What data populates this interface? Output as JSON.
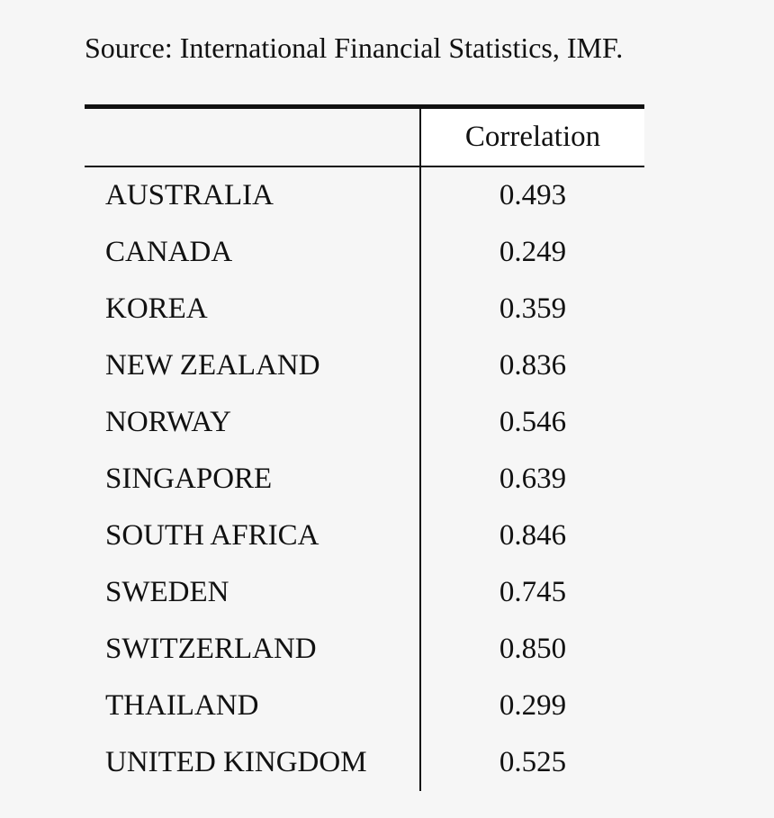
{
  "source_note": "Source: International Financial Statistics, IMF.",
  "table": {
    "header": {
      "row_label": "",
      "value_label": "Correlation"
    },
    "rows": [
      {
        "country": "AUSTRALIA",
        "correlation": "0.493"
      },
      {
        "country": "CANADA",
        "correlation": "0.249"
      },
      {
        "country": "KOREA",
        "correlation": "0.359"
      },
      {
        "country": "NEW ZEALAND",
        "correlation": "0.836"
      },
      {
        "country": "NORWAY",
        "correlation": "0.546"
      },
      {
        "country": "SINGAPORE",
        "correlation": "0.639"
      },
      {
        "country": "SOUTH AFRICA",
        "correlation": "0.846"
      },
      {
        "country": "SWEDEN",
        "correlation": "0.745"
      },
      {
        "country": "SWITZERLAND",
        "correlation": "0.850"
      },
      {
        "country": "THAILAND",
        "correlation": "0.299"
      },
      {
        "country": "UNITED KINGDOM",
        "correlation": "0.525"
      }
    ]
  }
}
